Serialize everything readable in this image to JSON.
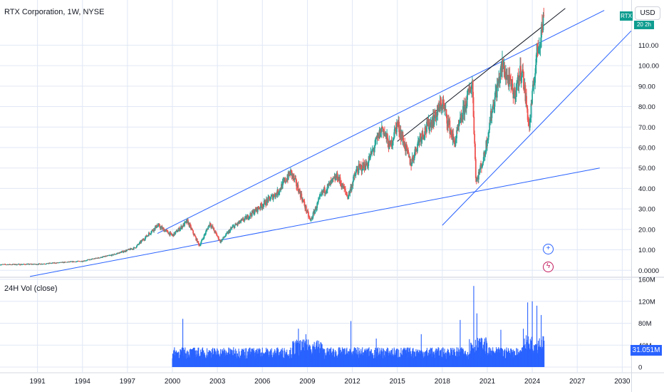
{
  "header": {
    "title": "RTX Corporation, 1W, NYSE",
    "currency": "USD",
    "ticker_badge": "RTX",
    "last_price_badge": "20 2h"
  },
  "volume_panel": {
    "title": "24H Vol (close)",
    "last_value": "31.051M"
  },
  "colors": {
    "up": "#26a69a",
    "down": "#ef5350",
    "trendline": "#2962ff",
    "black_trendline": "#131722",
    "volume": "#2962ff",
    "grid": "#e0e7f5"
  },
  "chart_data": [
    {
      "type": "candlestick",
      "title": "RTX Corporation, 1W, NYSE",
      "xlabel": "",
      "ylabel": "",
      "x_ticks": [
        "1991",
        "1994",
        "1997",
        "2000",
        "2003",
        "2006",
        "2009",
        "2012",
        "2015",
        "2018",
        "2021",
        "2024",
        "2027",
        "2030"
      ],
      "x_range": [
        1988.5,
        2030.6
      ],
      "y_ticks": [
        "0.0000",
        "10.00",
        "20.00",
        "30.00",
        "40.00",
        "50.00",
        "60.00",
        "70.00",
        "80.00",
        "90.00",
        "100.00",
        "110.00"
      ],
      "y_range": [
        -2,
        130
      ],
      "grid": true,
      "price_path": [
        [
          1988.5,
          2.8
        ],
        [
          1991,
          3.0
        ],
        [
          1994,
          4.5
        ],
        [
          1996,
          7.5
        ],
        [
          1997.5,
          11
        ],
        [
          1999,
          22
        ],
        [
          2000,
          17
        ],
        [
          2001,
          24
        ],
        [
          2001.8,
          12
        ],
        [
          2002.5,
          23
        ],
        [
          2003.2,
          14
        ],
        [
          2004,
          21
        ],
        [
          2005,
          26
        ],
        [
          2006,
          32
        ],
        [
          2007,
          38
        ],
        [
          2007.9,
          48
        ],
        [
          2008.5,
          38
        ],
        [
          2009.2,
          24
        ],
        [
          2010,
          38
        ],
        [
          2011,
          46
        ],
        [
          2011.7,
          36
        ],
        [
          2012.3,
          49
        ],
        [
          2013,
          52
        ],
        [
          2014,
          70
        ],
        [
          2014.5,
          60
        ],
        [
          2015,
          72
        ],
        [
          2015.9,
          52
        ],
        [
          2016.5,
          65
        ],
        [
          2017.5,
          75
        ],
        [
          2018,
          82
        ],
        [
          2018.8,
          62
        ],
        [
          2019.5,
          80
        ],
        [
          2020,
          92
        ],
        [
          2020.25,
          43
        ],
        [
          2020.8,
          56
        ],
        [
          2021.3,
          78
        ],
        [
          2022,
          100
        ],
        [
          2022.8,
          86
        ],
        [
          2023.3,
          99
        ],
        [
          2023.8,
          70
        ],
        [
          2024.3,
          106
        ],
        [
          2024.8,
          124
        ]
      ],
      "trendlines": [
        {
          "color": "blue",
          "points": [
            [
              1990.5,
              -3
            ],
            [
              2028.5,
              50
            ]
          ]
        },
        {
          "color": "blue",
          "points": [
            [
              1999,
              18
            ],
            [
              2028.8,
              127
            ]
          ]
        },
        {
          "color": "blue",
          "points": [
            [
              2018,
              22
            ],
            [
              2030.6,
              117
            ]
          ]
        },
        {
          "color": "black",
          "points": [
            [
              2015,
              63
            ],
            [
              2026.2,
              128
            ]
          ]
        }
      ]
    },
    {
      "type": "bar",
      "title": "24H Vol (close)",
      "y_ticks": [
        "0",
        "40M",
        "80M",
        "120M",
        "160M"
      ],
      "y_range": [
        0,
        160
      ],
      "volume_start": 2000,
      "volume_end": 2024.8,
      "baseline": 25,
      "spikes": [
        [
          2000.7,
          88
        ],
        [
          2008.4,
          70
        ],
        [
          2008.9,
          60
        ],
        [
          2011.9,
          84
        ],
        [
          2013.6,
          52
        ],
        [
          2016.6,
          60
        ],
        [
          2019.2,
          86
        ],
        [
          2020.1,
          148
        ],
        [
          2020.3,
          98
        ],
        [
          2021.9,
          68
        ],
        [
          2023.4,
          70
        ],
        [
          2023.7,
          118
        ],
        [
          2024.0,
          120
        ],
        [
          2024.3,
          112
        ],
        [
          2024.6,
          95
        ]
      ],
      "last_value": "31.051M"
    }
  ]
}
